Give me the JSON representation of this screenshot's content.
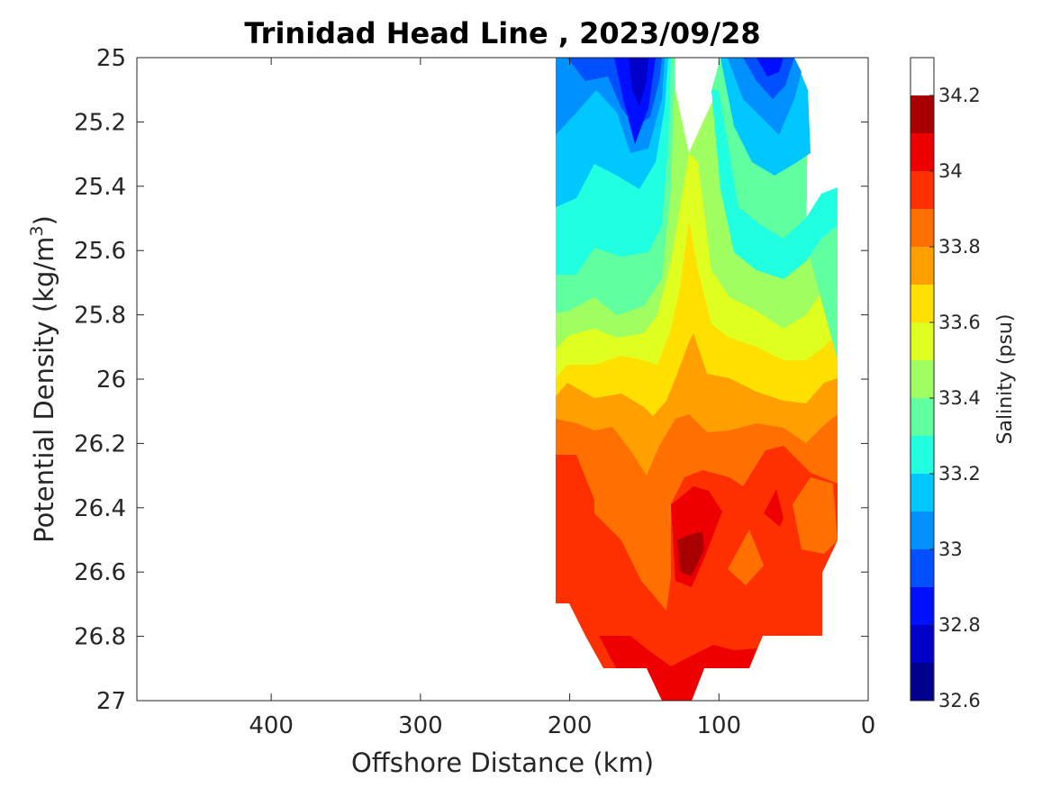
{
  "chart_data": {
    "type": "contour",
    "title": "Trinidad Head Line , 2023/09/28",
    "xlabel": "Offshore Distance (km)",
    "ylabel_main": "Potential Density (kg/m",
    "ylabel_sup": "3",
    "ylabel_close": ")",
    "colorbar_label": "Salinity (psu)",
    "xlim": [
      490,
      0
    ],
    "ylim": [
      25,
      27
    ],
    "x_ticks": [
      "400",
      "300",
      "200",
      "100",
      "0"
    ],
    "x_tick_values": [
      400,
      300,
      200,
      100,
      0
    ],
    "y_ticks": [
      "25",
      "25.2",
      "25.4",
      "25.6",
      "25.8",
      "26",
      "26.2",
      "26.4",
      "26.6",
      "26.8",
      "27"
    ],
    "y_tick_values": [
      25,
      25.2,
      25.4,
      25.6,
      25.8,
      26,
      26.2,
      26.4,
      26.6,
      26.8,
      27
    ],
    "colorbar_ticks": [
      "32.6",
      "32.8",
      "33",
      "33.2",
      "33.4",
      "33.6",
      "33.8",
      "34",
      "34.2"
    ],
    "colorbar_tick_values": [
      32.6,
      32.8,
      33.0,
      33.2,
      33.4,
      33.6,
      33.8,
      34.0,
      34.2
    ],
    "clim": [
      32.6,
      34.3
    ],
    "contour_interval": 0.1,
    "colormap": "jet",
    "colors": [
      "#00008f",
      "#0000c8",
      "#0010ff",
      "#0050ff",
      "#0090ff",
      "#00c8ff",
      "#20ffdf",
      "#60ffa0",
      "#a0ff60",
      "#dfff20",
      "#ffe000",
      "#ffa000",
      "#ff7000",
      "#ff3000",
      "#ef0000",
      "#a80000"
    ],
    "data_extent": {
      "x_range_km": [
        20,
        210
      ],
      "density_range": [
        25,
        27
      ]
    },
    "salinity_field": {
      "x_km": [
        210,
        190,
        170,
        150,
        130,
        110,
        90,
        70,
        50,
        30,
        20
      ],
      "density": [
        25.0,
        25.2,
        25.4,
        25.6,
        25.8,
        26.0,
        26.2,
        26.4,
        26.6,
        26.8,
        27.0
      ],
      "values": [
        [
          33.05,
          32.95,
          32.85,
          32.75,
          null,
          null,
          32.95,
          32.8,
          32.85,
          null,
          null
        ],
        [
          33.1,
          33.05,
          32.95,
          32.8,
          33.25,
          33.5,
          33.05,
          32.9,
          33.05,
          33.25,
          null
        ],
        [
          33.2,
          33.15,
          33.05,
          32.9,
          33.3,
          33.55,
          33.3,
          33.1,
          33.2,
          33.35,
          33.4
        ],
        [
          33.3,
          33.25,
          33.2,
          33.05,
          33.45,
          33.65,
          33.4,
          33.2,
          33.3,
          33.45,
          33.5
        ],
        [
          33.4,
          33.35,
          33.3,
          33.2,
          33.55,
          33.7,
          33.5,
          33.3,
          33.45,
          33.55,
          33.6
        ],
        [
          33.6,
          33.55,
          33.5,
          33.6,
          33.75,
          33.8,
          33.7,
          33.6,
          33.65,
          33.7,
          33.75
        ],
        [
          33.95,
          33.9,
          33.85,
          33.8,
          33.9,
          33.95,
          33.95,
          33.9,
          33.85,
          33.9,
          33.95
        ],
        [
          34.05,
          34.0,
          33.95,
          33.95,
          34.1,
          34.05,
          34.05,
          34.05,
          34.15,
          34.0,
          33.95
        ],
        [
          34.05,
          34.05,
          34.0,
          33.95,
          34.25,
          34.15,
          33.95,
          34.05,
          34.05,
          33.95,
          33.9
        ],
        [
          null,
          34.05,
          34.05,
          34.0,
          34.05,
          34.05,
          34.05,
          34.05,
          34.05,
          34.05,
          null
        ],
        [
          null,
          null,
          null,
          34.1,
          34.15,
          34.05,
          null,
          null,
          null,
          null,
          null
        ]
      ]
    }
  }
}
